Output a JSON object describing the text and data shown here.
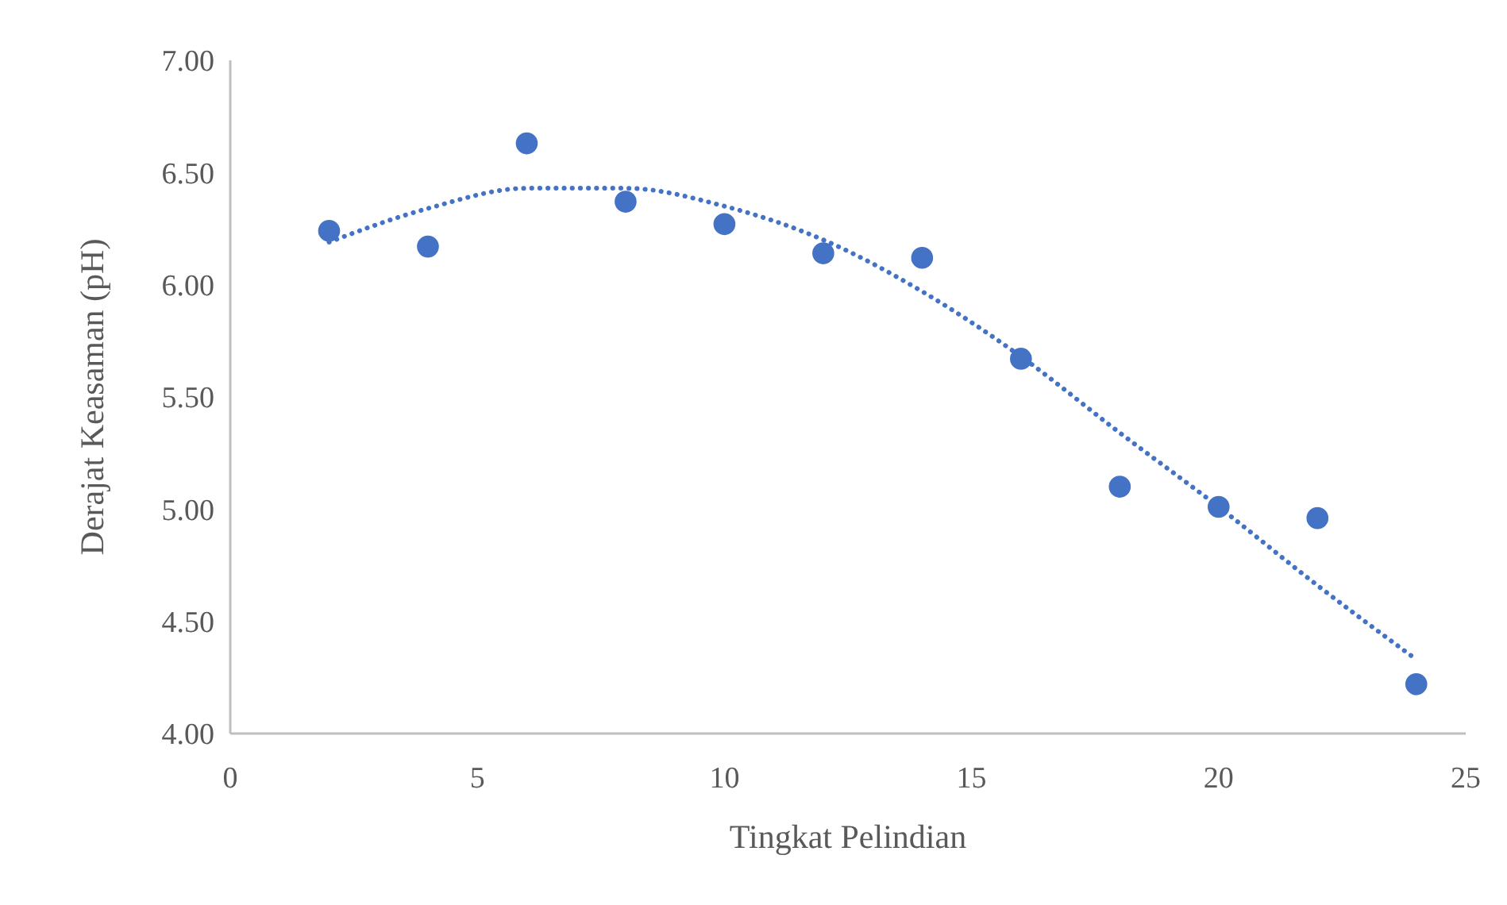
{
  "chart_data": {
    "type": "scatter",
    "xlabel": "Tingkat Pelindian",
    "ylabel": "Derajat Keasaman (pH)",
    "xlim": [
      0,
      25
    ],
    "xticks": [
      0,
      5,
      10,
      15,
      20,
      25
    ],
    "ylim": [
      4,
      7
    ],
    "yticks": [
      {
        "value": 4,
        "label": "4.00"
      },
      {
        "value": 4.5,
        "label": "4.50"
      },
      {
        "value": 5,
        "label": "5.00"
      },
      {
        "value": 5.5,
        "label": "5.50"
      },
      {
        "value": 6,
        "label": "6.00"
      },
      {
        "value": 6.5,
        "label": "6.50"
      },
      {
        "value": 7,
        "label": "7.00"
      }
    ],
    "grid": false,
    "series": [
      {
        "color": "#4472c4",
        "marker": "circle",
        "x": [
          2,
          4,
          6,
          8,
          10,
          12,
          14,
          16,
          18,
          20,
          22,
          24
        ],
        "values": [
          6.24,
          6.17,
          6.63,
          6.37,
          6.27,
          6.14,
          6.12,
          5.67,
          5.1,
          5.01,
          4.96,
          4.22
        ]
      },
      {
        "type": "line",
        "color": "#4472c4",
        "marker": "none",
        "line_style": "dotted",
        "x": [
          2,
          4,
          6,
          8,
          10,
          12,
          14,
          16,
          18,
          20,
          22,
          24
        ],
        "values": [
          6.19,
          6.34,
          6.43,
          6.43,
          6.35,
          6.2,
          5.97,
          5.68,
          5.34,
          5.01,
          4.66,
          4.33
        ]
      }
    ]
  }
}
